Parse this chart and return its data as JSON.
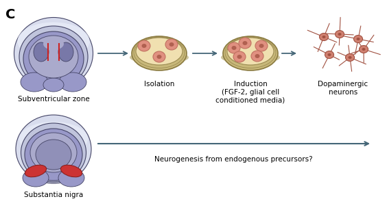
{
  "bg_color": "#ffffff",
  "panel_label": "C",
  "panel_label_fontsize": 14,
  "svz_label": "Subventricular zone",
  "sn_label": "Substantia nigra",
  "dish_label1": "Isolation",
  "dish_label2": "Induction\n(FGF-2, glial cell\nconditioned media)",
  "dopamine_label": "Dopaminergic\nneurons",
  "neuro_label": "Neurogenesis from endogenous precursors?",
  "arrow_color": "#446677",
  "text_color": "#000000",
  "label_fontsize": 7.5,
  "brain_outer1": "#d0d4e8",
  "brain_outer2": "#c0c4dc",
  "brain_inner": "#9090c0",
  "brain_inner2": "#a0a0cc",
  "brain_ventricle": "#7878aa",
  "brain_edge": "#444466",
  "svz_red": "#cc2222",
  "sn_red": "#cc2222",
  "dish_outer": "#c8b87a",
  "dish_rim": "#b8a060",
  "dish_inner": "#f0e0b0",
  "dish_edge": "#9a8a50",
  "cell_fill": "#e09080",
  "cell_edge": "#c07060",
  "cell_nucleus": "#b06050",
  "neuron_body": "#d08070",
  "neuron_edge": "#a05040",
  "neuron_process": "#a05040"
}
